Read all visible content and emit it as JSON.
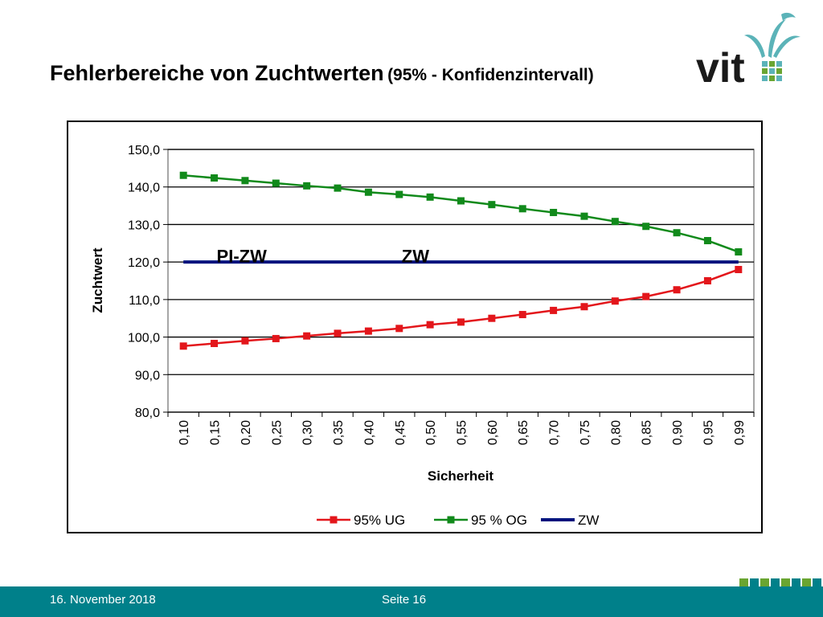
{
  "slide": {
    "title_main": "Fehlerbereiche von Zuchtwerten",
    "title_sub": "(95% - Konfidenzintervall)",
    "logo_text": "vit",
    "footer_date": "16. November 2018",
    "footer_page": "Seite 16"
  },
  "colors": {
    "ug": "#e3161b",
    "og": "#118a1b",
    "zw": "#00127d",
    "footer": "#00808a",
    "logo_teal": "#5bb3b8",
    "logo_green": "#6aa531"
  },
  "chart_data": {
    "type": "line",
    "xlabel": "Sicherheit",
    "ylabel": "Zuchtwert",
    "ylim": [
      80,
      150
    ],
    "y_ticks": [
      "80,0",
      "90,0",
      "100,0",
      "110,0",
      "120,0",
      "130,0",
      "140,0",
      "150,0"
    ],
    "y_tick_values": [
      80,
      90,
      100,
      110,
      120,
      130,
      140,
      150
    ],
    "grid": true,
    "legend_position": "bottom",
    "categories": [
      "0,10",
      "0,15",
      "0,20",
      "0,25",
      "0,30",
      "0,35",
      "0,40",
      "0,45",
      "0,50",
      "0,55",
      "0,60",
      "0,65",
      "0,70",
      "0,75",
      "0,80",
      "0,85",
      "0,90",
      "0,95",
      "0,99"
    ],
    "series": [
      {
        "name": "95% UG",
        "marker": "square",
        "values": [
          97.6,
          98.3,
          99.0,
          99.6,
          100.3,
          101.0,
          101.6,
          102.3,
          103.3,
          104.0,
          105.0,
          106.0,
          107.1,
          108.1,
          109.6,
          110.8,
          112.6,
          115.0,
          118.0
        ]
      },
      {
        "name": "95 % OG",
        "marker": "square",
        "values": [
          143.1,
          142.4,
          141.7,
          141.0,
          140.3,
          139.7,
          138.6,
          138.0,
          137.3,
          136.3,
          135.3,
          134.2,
          133.2,
          132.2,
          130.8,
          129.5,
          127.8,
          125.7,
          122.7
        ]
      },
      {
        "name": "ZW",
        "marker": "none",
        "values": [
          120,
          120,
          120,
          120,
          120,
          120,
          120,
          120,
          120,
          120,
          120,
          120,
          120,
          120,
          120,
          120,
          120,
          120,
          120
        ]
      }
    ],
    "annotations": [
      {
        "text": "PI-ZW",
        "x": "0,15",
        "y": 125.5
      },
      {
        "text": "ZW",
        "x": "0,45",
        "y": 125.5
      }
    ]
  }
}
